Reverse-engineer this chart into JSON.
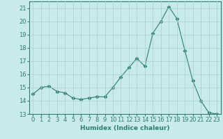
{
  "x": [
    0,
    1,
    2,
    3,
    4,
    5,
    6,
    7,
    8,
    9,
    10,
    11,
    12,
    13,
    14,
    15,
    16,
    17,
    18,
    19,
    20,
    21,
    22,
    23
  ],
  "y": [
    14.5,
    15.0,
    15.1,
    14.7,
    14.6,
    14.2,
    14.1,
    14.2,
    14.3,
    14.3,
    15.0,
    15.8,
    16.5,
    17.2,
    16.6,
    19.1,
    20.0,
    21.1,
    20.2,
    17.8,
    15.5,
    14.0,
    13.1,
    13.0
  ],
  "line_color": "#2e7d6e",
  "marker": "D",
  "marker_size": 2.5,
  "bg_color": "#c8eaea",
  "grid_color": "#aad0d0",
  "xlabel": "Humidex (Indice chaleur)",
  "xlim": [
    -0.5,
    23.5
  ],
  "ylim": [
    13,
    21.5
  ],
  "yticks": [
    13,
    14,
    15,
    16,
    17,
    18,
    19,
    20,
    21
  ],
  "xticks": [
    0,
    1,
    2,
    3,
    4,
    5,
    6,
    7,
    8,
    9,
    10,
    11,
    12,
    13,
    14,
    15,
    16,
    17,
    18,
    19,
    20,
    21,
    22,
    23
  ],
  "label_fontsize": 6.5,
  "tick_fontsize": 6
}
